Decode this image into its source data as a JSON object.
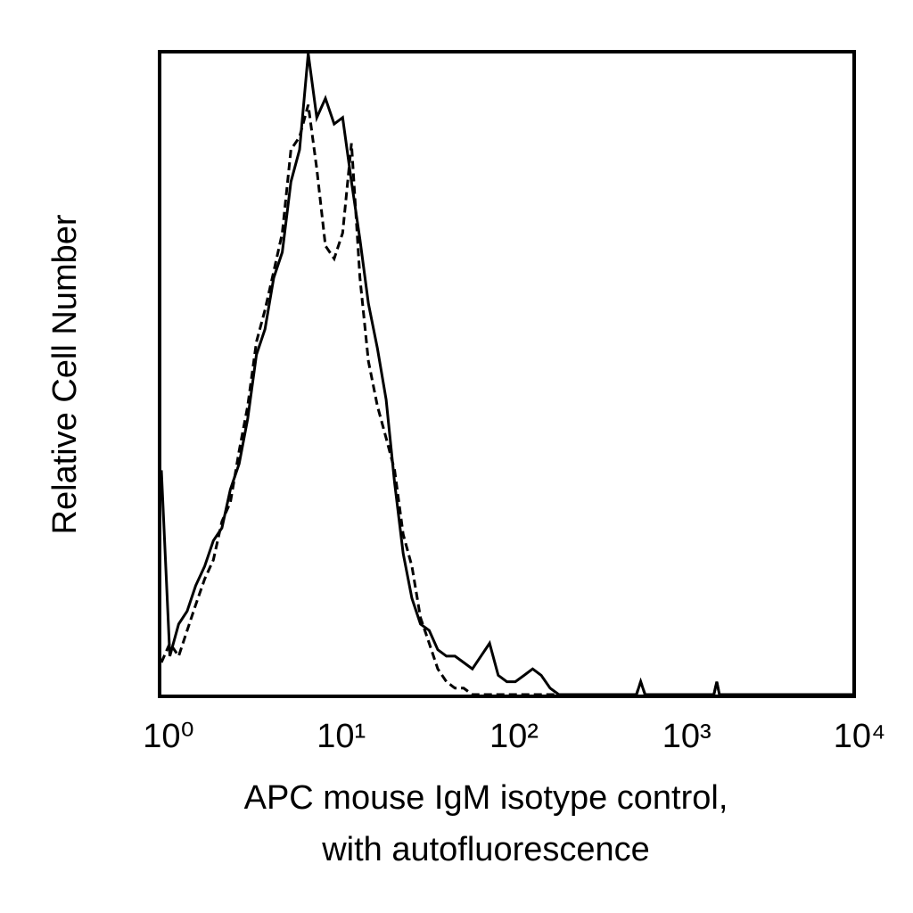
{
  "chart_data": {
    "type": "line",
    "xlabel": [
      "APC mouse IgM isotype control,",
      "with autofluorescence"
    ],
    "ylabel": "Relative Cell Number",
    "xlog": true,
    "xlim": [
      1,
      10000
    ],
    "ylim": [
      0,
      100
    ],
    "xticks": [
      {
        "value": 1,
        "label": "10⁰"
      },
      {
        "value": 10,
        "label": "10¹"
      },
      {
        "value": 100,
        "label": "10²"
      },
      {
        "value": 1000,
        "label": "10³"
      },
      {
        "value": 10000,
        "label": "10⁴"
      }
    ],
    "x": [
      1,
      1.12,
      1.26,
      1.41,
      1.58,
      1.78,
      2,
      2.24,
      2.51,
      2.82,
      3.16,
      3.55,
      3.98,
      4.47,
      5.01,
      5.62,
      6.31,
      7.08,
      7.94,
      8.91,
      10,
      11.2,
      12.6,
      14.1,
      15.8,
      17.8,
      20,
      22.4,
      25.1,
      28.2,
      31.6,
      35.5,
      39.8,
      44.7,
      50.1,
      56.2,
      63.1,
      70.8,
      79.4,
      89.1,
      100,
      112,
      126,
      141,
      158,
      178,
      200,
      251,
      562,
      595,
      631,
      1580,
      1640,
      1700,
      10000
    ],
    "series": [
      {
        "color": "#000000",
        "dash": false,
        "values": [
          35,
          6,
          11,
          13,
          17,
          20,
          24,
          26,
          32,
          36,
          43,
          53,
          57,
          65,
          69,
          80,
          85,
          100,
          90,
          93,
          89,
          90,
          80,
          71,
          61,
          54,
          46,
          33,
          22,
          15,
          11,
          10,
          7,
          6,
          6,
          5,
          4,
          6,
          8,
          3,
          2,
          2,
          3,
          4,
          3,
          1,
          0,
          0,
          0,
          2,
          0,
          0,
          2,
          0,
          0
        ]
      },
      {
        "color": "#000000",
        "dash": true,
        "values": [
          5,
          8,
          6,
          10,
          14,
          18,
          21,
          27,
          30,
          38,
          45,
          55,
          60,
          66,
          72,
          85,
          87,
          92,
          82,
          70,
          68,
          72,
          86,
          65,
          52,
          45,
          40,
          35,
          25,
          20,
          12,
          8,
          4,
          2,
          1,
          1,
          0,
          0,
          0,
          0,
          0,
          0,
          0,
          0,
          0,
          0,
          0,
          0,
          0,
          2,
          0,
          0,
          2,
          0,
          0
        ]
      }
    ]
  }
}
